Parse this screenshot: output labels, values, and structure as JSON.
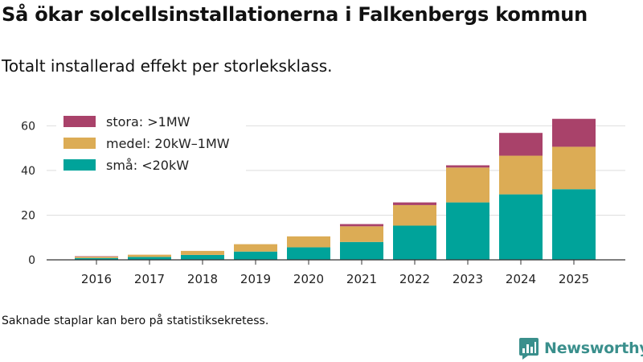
{
  "title": "Så ökar solcellsinstallationerna i Falkenbergs kommun",
  "subtitle": "Totalt installerad effekt per storleksklass.",
  "footnote": "Saknade staplar kan bero på statistiksekretess.",
  "brand": {
    "name": "Newsworthy",
    "color": "#3a8f8c",
    "logo_icon": "bar-chart-speech-bubble-icon"
  },
  "chart_data": {
    "type": "bar",
    "stacked": true,
    "categories": [
      "2016",
      "2017",
      "2018",
      "2019",
      "2020",
      "2021",
      "2022",
      "2023",
      "2024",
      "2025"
    ],
    "series": [
      {
        "name": "små: <20kW",
        "color": "#00a39a",
        "values": [
          0.8,
          1.3,
          2.2,
          3.7,
          5.6,
          8.0,
          15.3,
          25.7,
          29.3,
          31.6
        ]
      },
      {
        "name": "medel: 20kW–1MW",
        "color": "#dcac55",
        "values": [
          0.6,
          1.0,
          1.8,
          3.3,
          4.9,
          7.0,
          9.2,
          15.6,
          17.3,
          19.0
        ]
      },
      {
        "name": "stora: >1MW",
        "color": "#a9426a",
        "values": [
          0.2,
          0,
          0,
          0,
          0,
          1.0,
          1.2,
          1.0,
          10.2,
          12.5
        ]
      }
    ],
    "ylim": [
      0,
      65
    ],
    "yticks": [
      0,
      20,
      40,
      60
    ],
    "legend_order": [
      "stora: >1MW",
      "medel: 20kW–1MW",
      "små: <20kW"
    ],
    "legend_position": "top-left",
    "grid": true,
    "xlabel": "",
    "ylabel": ""
  }
}
